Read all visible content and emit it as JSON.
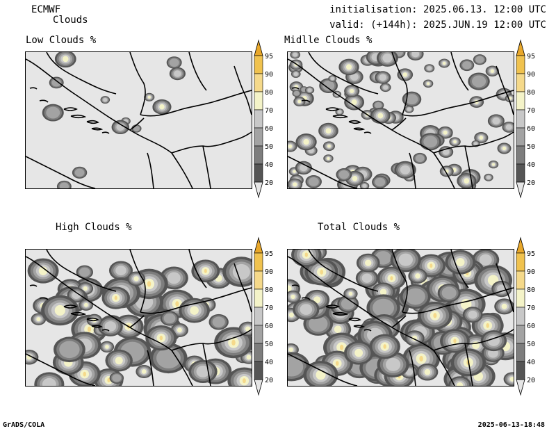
{
  "header": {
    "model": "ECMWF",
    "product": "Clouds",
    "initialisation": "initialisation: 2025.06.13. 12:00 UTC",
    "valid": "valid: (+144h): 2025.JUN.19 12:00 UTC"
  },
  "panels": [
    {
      "title": "Low Clouds %"
    },
    {
      "title": "Midlle Clouds %"
    },
    {
      "title": "High Clouds %"
    },
    {
      "title": "Total Clouds %"
    }
  ],
  "colorbar": {
    "levels": [
      "95",
      "90",
      "80",
      "70",
      "60",
      "50",
      "40",
      "20"
    ],
    "colors": [
      "#e8a72a",
      "#f0c24e",
      "#f5d98a",
      "#f4f3c8",
      "#c8c8c8",
      "#a3a3a3",
      "#7d7d7d",
      "#555555",
      "#e6e6e6"
    ]
  },
  "footer": {
    "left": "GrADS/COLA",
    "right": "2025-06-13-18:48"
  }
}
